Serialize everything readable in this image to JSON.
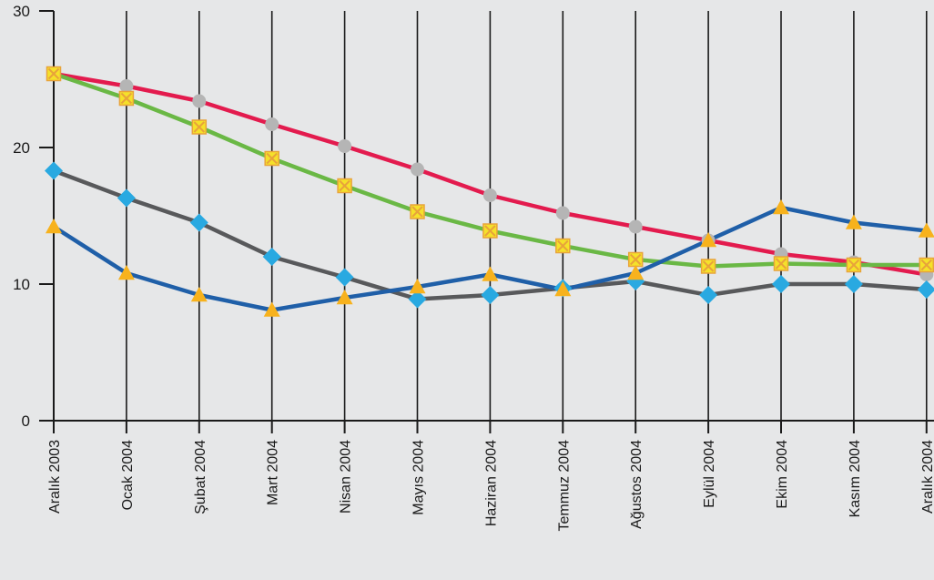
{
  "chart_data": {
    "type": "line",
    "title": "",
    "xlabel": "",
    "ylabel": "",
    "categories": [
      "Aralık 2003",
      "Ocak 2004",
      "Şubat 2004",
      "Mart 2004",
      "Nisan 2004",
      "Mayıs 2004",
      "Haziran 2004",
      "Temmuz 2004",
      "Ağustos 2004",
      "Eylül 2004",
      "Ekim 2004",
      "Kasım 2004",
      "Aralık 2004"
    ],
    "ylim": [
      0,
      30
    ],
    "yticks": [
      0,
      10,
      20,
      30
    ],
    "grid": "vertical",
    "legend": "none",
    "series": [
      {
        "color": "#e31b4e",
        "marker": "circle",
        "marker_color": "#b5b5b5",
        "values": [
          25.4,
          24.5,
          23.4,
          21.7,
          20.1,
          18.4,
          16.5,
          15.2,
          14.2,
          13.2,
          12.2,
          11.6,
          10.7
        ]
      },
      {
        "color": "#6ab845",
        "marker": "square-x",
        "marker_color": "#f5e12a",
        "marker_border": "#e8a33b",
        "values": [
          25.4,
          23.6,
          21.5,
          19.2,
          17.2,
          15.3,
          13.9,
          12.8,
          11.8,
          11.3,
          11.5,
          11.4,
          11.4
        ]
      },
      {
        "color": "#58595b",
        "marker": "diamond",
        "marker_color": "#29a9e1",
        "values": [
          18.3,
          16.3,
          14.5,
          12.0,
          10.5,
          8.9,
          9.2,
          9.7,
          10.2,
          9.2,
          10.0,
          10.0,
          9.6
        ]
      },
      {
        "color": "#1f5fa8",
        "marker": "triangle",
        "marker_color": "#f7b21d",
        "values": [
          14.2,
          10.8,
          9.2,
          8.1,
          9.0,
          9.8,
          10.7,
          9.6,
          10.8,
          13.2,
          15.6,
          14.5,
          13.9
        ]
      }
    ]
  }
}
